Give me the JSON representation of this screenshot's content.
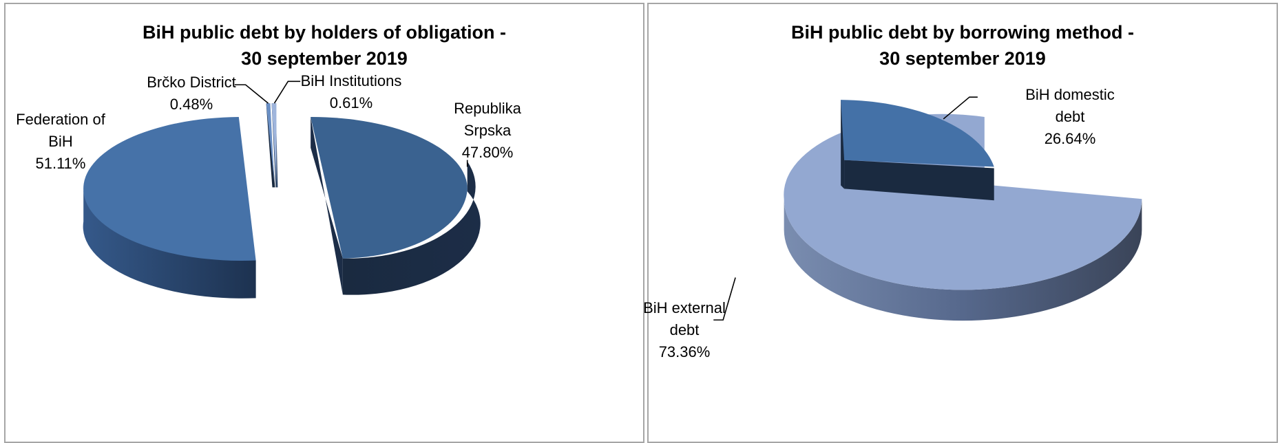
{
  "colors": {
    "fed_top": "#4672a8",
    "rs_top": "#3a6290",
    "brcko_top": "#6a8fc4",
    "inst_top": "#9fb5dc",
    "domestic_top": "#4471a7",
    "external_top": "#93a8d1",
    "side_dark": "#1a2a40",
    "side_mid": "#2b4466"
  },
  "chart_data": [
    {
      "type": "pie",
      "title_lines": [
        "BiH public debt by holders of obligation -",
        "30 september 2019"
      ],
      "slices": [
        {
          "label_lines": [
            "Federation of",
            "BiH"
          ],
          "pct_text": "51.11%",
          "value": 51.11
        },
        {
          "label_lines": [
            "Brčko District"
          ],
          "pct_text": "0.48%",
          "value": 0.48
        },
        {
          "label_lines": [
            "BiH Institutions"
          ],
          "pct_text": "0.61%",
          "value": 0.61
        },
        {
          "label_lines": [
            "Republika",
            "Srpska"
          ],
          "pct_text": "47.80%",
          "value": 47.8
        }
      ]
    },
    {
      "type": "pie",
      "title_lines": [
        "BiH public debt by borrowing method -",
        "30  september 2019"
      ],
      "slices": [
        {
          "label_lines": [
            "BiH domestic",
            "debt"
          ],
          "pct_text": "26.64%",
          "value": 26.64
        },
        {
          "label_lines": [
            "BiH external",
            "debt"
          ],
          "pct_text": "73.36%",
          "value": 73.36
        }
      ]
    }
  ]
}
